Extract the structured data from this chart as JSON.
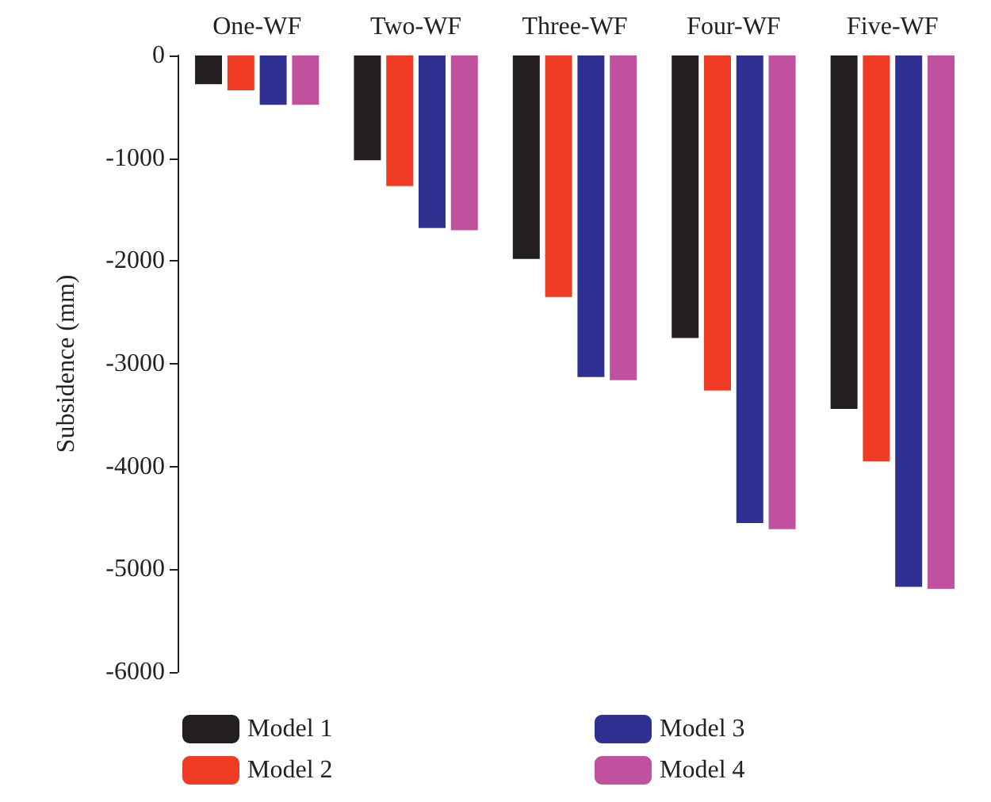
{
  "chart_data": {
    "type": "bar",
    "ylabel": "Subsidence (mm)",
    "categories": [
      "One-WF",
      "Two-WF",
      "Three-WF",
      "Four-WF",
      "Five-WF"
    ],
    "series": [
      {
        "name": "Model 1",
        "color": "#231f20",
        "values": [
          -280,
          -1020,
          -1980,
          -2750,
          -3440
        ]
      },
      {
        "name": "Model 2",
        "color": "#f03c24",
        "values": [
          -340,
          -1270,
          -2350,
          -3260,
          -3950
        ]
      },
      {
        "name": "Model 3",
        "color": "#2e3192",
        "values": [
          -480,
          -1680,
          -3130,
          -4550,
          -5170
        ]
      },
      {
        "name": "Model 4",
        "color": "#c1509f",
        "values": [
          -480,
          -1700,
          -3160,
          -4610,
          -5190
        ]
      }
    ],
    "ylim": [
      -6000,
      0
    ],
    "yticks": [
      -6000,
      -5000,
      -4000,
      -3000,
      -2000,
      -1000,
      0
    ],
    "grid": false,
    "legend": "bottom"
  }
}
